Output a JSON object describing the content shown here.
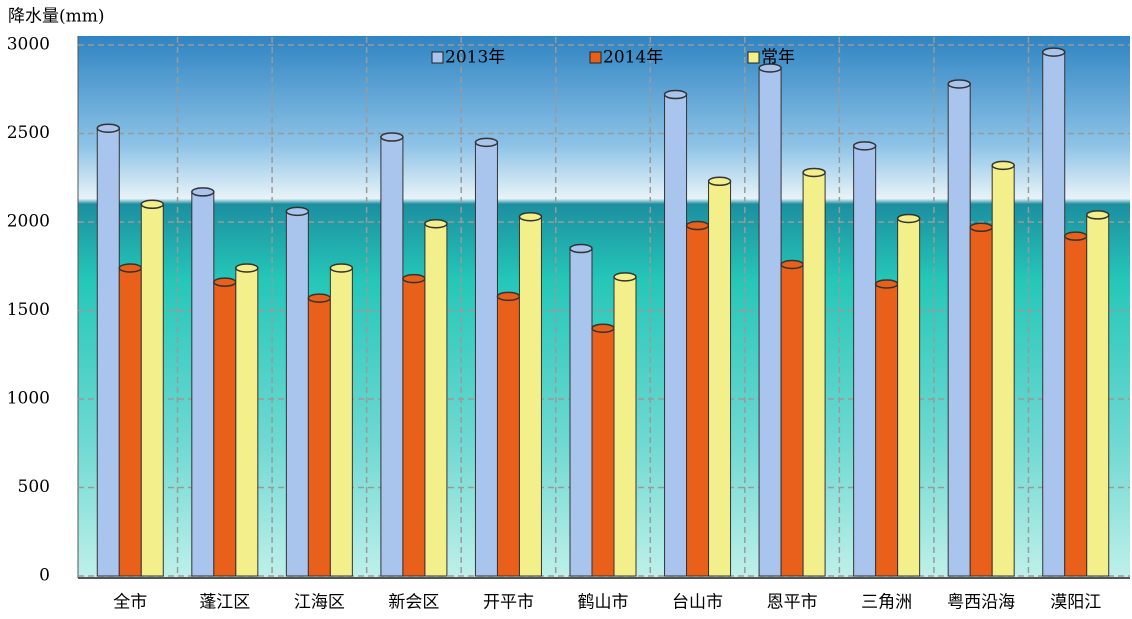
{
  "chart_data": {
    "type": "bar",
    "y_label": "降水量(mm)",
    "categories": [
      "全市",
      "蓬江区",
      "江海区",
      "新会区",
      "开平市",
      "鹤山市",
      "台山市",
      "恩平市",
      "三角洲",
      "粤西沿海",
      "漠阳江"
    ],
    "series": [
      {
        "name": "2013年",
        "color": "#a9c5ee",
        "values": [
          2530,
          2170,
          2060,
          2480,
          2450,
          1850,
          2720,
          2870,
          2430,
          2780,
          2960
        ]
      },
      {
        "name": "2014年",
        "color": "#e8601a",
        "values": [
          1740,
          1660,
          1570,
          1680,
          1580,
          1400,
          1980,
          1760,
          1650,
          1970,
          1920
        ]
      },
      {
        "name": "常年",
        "color": "#f3ef8a",
        "values": [
          2100,
          1740,
          1740,
          1990,
          2030,
          1690,
          2230,
          2280,
          2020,
          2320,
          2040
        ]
      }
    ],
    "ylim": [
      0,
      3000
    ],
    "yticks": [
      0,
      500,
      1000,
      1500,
      2000,
      2500,
      3000
    ],
    "grid": true
  }
}
